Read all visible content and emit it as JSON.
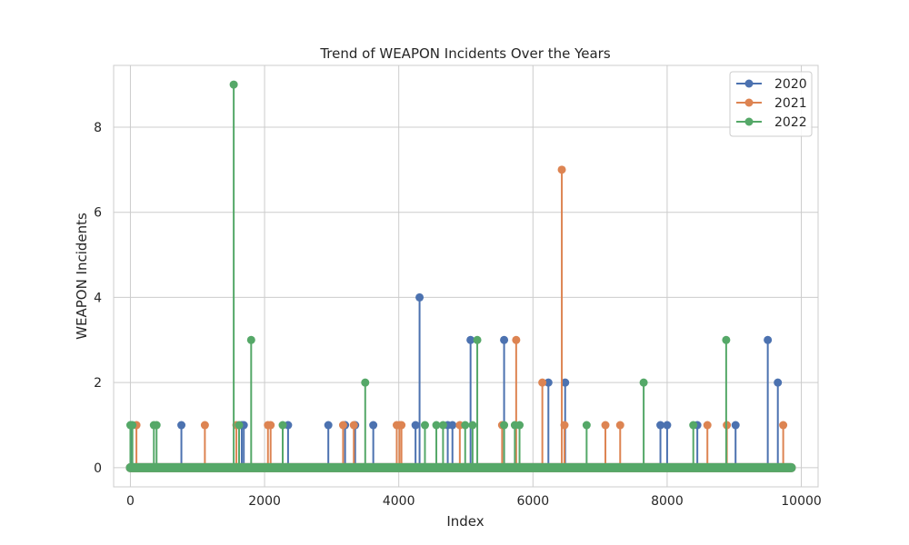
{
  "chart_data": {
    "type": "line",
    "title": "Trend of WEAPON Incidents Over the Years",
    "xlabel": "Index",
    "ylabel": "WEAPON Incidents",
    "xlim": [
      -250,
      10250
    ],
    "ylim": [
      -0.45,
      9.45
    ],
    "xticks": [
      0,
      2000,
      4000,
      6000,
      8000,
      10000
    ],
    "yticks": [
      0,
      2,
      4,
      6,
      8
    ],
    "grid": true,
    "legend_position": "top-right",
    "x_range": [
      0,
      9850
    ],
    "series": [
      {
        "name": "2020",
        "color": "#4c72b0",
        "baseline": 0,
        "spikes": [
          {
            "x": 10,
            "y": 1
          },
          {
            "x": 760,
            "y": 1
          },
          {
            "x": 1660,
            "y": 1
          },
          {
            "x": 1690,
            "y": 1
          },
          {
            "x": 2350,
            "y": 1
          },
          {
            "x": 2950,
            "y": 1
          },
          {
            "x": 3200,
            "y": 1
          },
          {
            "x": 3350,
            "y": 1
          },
          {
            "x": 3620,
            "y": 1
          },
          {
            "x": 4250,
            "y": 1
          },
          {
            "x": 4310,
            "y": 4
          },
          {
            "x": 4730,
            "y": 1
          },
          {
            "x": 4800,
            "y": 1
          },
          {
            "x": 5070,
            "y": 3
          },
          {
            "x": 5570,
            "y": 3
          },
          {
            "x": 6230,
            "y": 2
          },
          {
            "x": 6480,
            "y": 2
          },
          {
            "x": 7900,
            "y": 1
          },
          {
            "x": 8000,
            "y": 1
          },
          {
            "x": 8450,
            "y": 1
          },
          {
            "x": 9020,
            "y": 1
          },
          {
            "x": 9500,
            "y": 3
          },
          {
            "x": 9650,
            "y": 2
          }
        ]
      },
      {
        "name": "2021",
        "color": "#dd8452",
        "baseline": 0,
        "spikes": [
          {
            "x": 90,
            "y": 1
          },
          {
            "x": 1110,
            "y": 1
          },
          {
            "x": 1580,
            "y": 1
          },
          {
            "x": 2050,
            "y": 1
          },
          {
            "x": 2090,
            "y": 1
          },
          {
            "x": 3170,
            "y": 1
          },
          {
            "x": 3330,
            "y": 1
          },
          {
            "x": 3970,
            "y": 1
          },
          {
            "x": 4010,
            "y": 1
          },
          {
            "x": 4040,
            "y": 1
          },
          {
            "x": 4910,
            "y": 1
          },
          {
            "x": 5540,
            "y": 1
          },
          {
            "x": 5750,
            "y": 3
          },
          {
            "x": 6140,
            "y": 2
          },
          {
            "x": 6430,
            "y": 7
          },
          {
            "x": 6470,
            "y": 1
          },
          {
            "x": 7080,
            "y": 1
          },
          {
            "x": 7300,
            "y": 1
          },
          {
            "x": 8600,
            "y": 1
          },
          {
            "x": 8890,
            "y": 1
          },
          {
            "x": 9730,
            "y": 1
          }
        ]
      },
      {
        "name": "2022",
        "color": "#55a868",
        "baseline": 0,
        "spikes": [
          {
            "x": 0,
            "y": 1
          },
          {
            "x": 30,
            "y": 1
          },
          {
            "x": 350,
            "y": 1
          },
          {
            "x": 390,
            "y": 1
          },
          {
            "x": 1540,
            "y": 9
          },
          {
            "x": 1620,
            "y": 1
          },
          {
            "x": 1800,
            "y": 3
          },
          {
            "x": 2270,
            "y": 1
          },
          {
            "x": 3500,
            "y": 2
          },
          {
            "x": 4390,
            "y": 1
          },
          {
            "x": 4560,
            "y": 1
          },
          {
            "x": 4660,
            "y": 1
          },
          {
            "x": 4990,
            "y": 1
          },
          {
            "x": 5100,
            "y": 1
          },
          {
            "x": 5170,
            "y": 3
          },
          {
            "x": 5570,
            "y": 1
          },
          {
            "x": 5730,
            "y": 1
          },
          {
            "x": 5800,
            "y": 1
          },
          {
            "x": 6800,
            "y": 1
          },
          {
            "x": 7650,
            "y": 2
          },
          {
            "x": 8390,
            "y": 1
          },
          {
            "x": 8880,
            "y": 3
          }
        ]
      }
    ]
  }
}
